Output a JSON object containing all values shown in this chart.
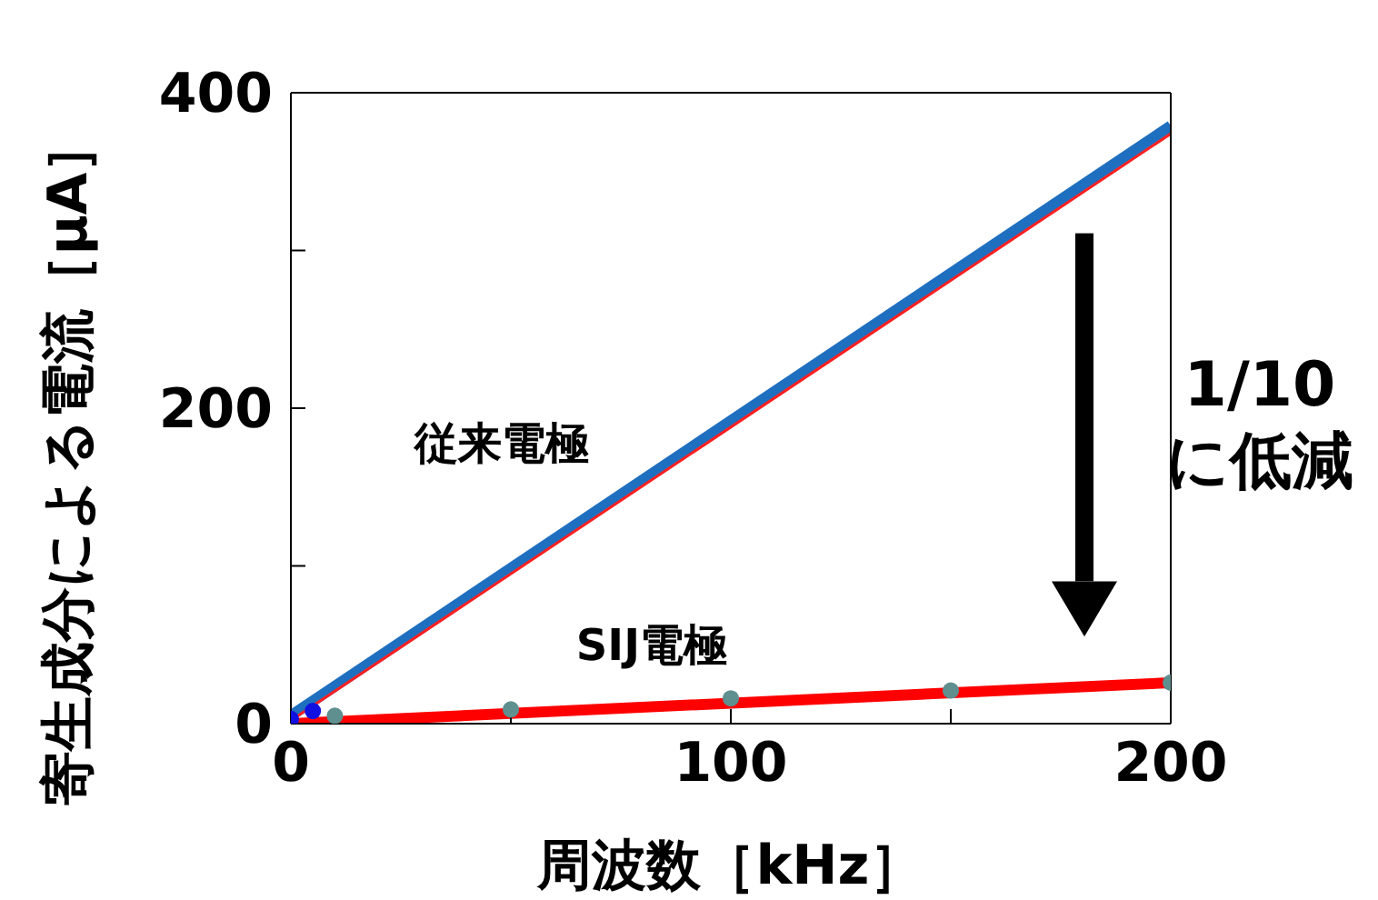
{
  "chart_data": {
    "type": "line",
    "xlabel": "周波数［kHz］",
    "ylabel": "寄生成分による電流［μA］",
    "xlim": [
      0,
      200
    ],
    "xticks": [
      0,
      {
        "value": 50,
        "label": null
      },
      100,
      {
        "value": 150,
        "label": null
      },
      200
    ],
    "ylim": [
      0,
      400
    ],
    "yticks": [
      0,
      {
        "value": 100,
        "label": null
      },
      200,
      {
        "value": 300,
        "label": null
      },
      400
    ],
    "series": [
      {
        "name": "従来電極",
        "color": "#1f6fc0",
        "x": [
          0,
          200
        ],
        "values": [
          5,
          379
        ]
      },
      {
        "color": "#ff2020",
        "x": [
          0,
          200
        ],
        "values": [
          2,
          374
        ]
      },
      {
        "name": "SIJ電極",
        "color": "#ff0000",
        "x": [
          0,
          200
        ],
        "values": [
          0,
          26
        ]
      },
      {
        "type": "scatter",
        "marker": "circle",
        "color": "#5f8f8f",
        "x": [
          10,
          50,
          100,
          150,
          200
        ],
        "values": [
          5,
          9,
          16,
          21,
          26
        ]
      },
      {
        "type": "scatter",
        "marker": "circle",
        "color": "#1010e0",
        "x": [
          0,
          5
        ],
        "values": [
          3,
          8
        ]
      }
    ],
    "annotations": [
      "1/10",
      "に低減"
    ],
    "line_style": "solid"
  }
}
